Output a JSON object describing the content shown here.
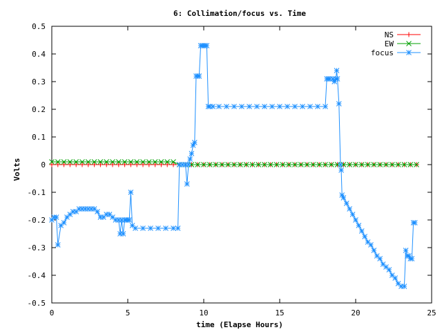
{
  "chart_data": {
    "type": "line",
    "title": "6: Collimation/focus vs. Time",
    "xlabel": "time (Elapse Hours)",
    "ylabel": "Volts",
    "xlim": [
      0,
      25
    ],
    "ylim": [
      -0.5,
      0.5
    ],
    "xticks": [
      0,
      5,
      10,
      15,
      20,
      25
    ],
    "xtick_labels": [
      "0",
      "5",
      "10",
      "15",
      "20",
      "25"
    ],
    "yticks": [
      -0.5,
      -0.4,
      -0.3,
      -0.2,
      -0.1,
      0,
      0.1,
      0.2,
      0.3,
      0.4,
      0.5
    ],
    "ytick_labels": [
      "-0.5",
      "-0.4",
      "-0.3",
      "-0.2",
      "-0.1",
      "0",
      "0.1",
      "0.2",
      "0.3",
      "0.4",
      "0.5"
    ],
    "grid": false,
    "legend_position": "top-right",
    "series": [
      {
        "name": "NS",
        "color": "#ff0000",
        "marker": "plus",
        "x": [
          0,
          0.4,
          0.8,
          1.2,
          1.6,
          2.0,
          2.4,
          2.8,
          3.2,
          3.6,
          4.0,
          4.4,
          4.8,
          5.2,
          5.6,
          6.0,
          6.4,
          6.8,
          7.2,
          7.6,
          8.0,
          8.4,
          8.8,
          9.2,
          9.6,
          10.0,
          10.4,
          10.8,
          11.2,
          11.6,
          12.0,
          12.4,
          12.8,
          13.2,
          13.6,
          14.0,
          14.4,
          14.8,
          15.2,
          15.6,
          16.0,
          16.4,
          16.8,
          17.2,
          17.6,
          18.0,
          18.4,
          18.8,
          19.2,
          19.6,
          20.0,
          20.4,
          20.8,
          21.2,
          21.6,
          22.0,
          22.4,
          22.8,
          23.2,
          23.6,
          24.0
        ],
        "y": [
          0,
          0,
          0,
          0,
          0,
          0,
          0,
          0,
          0,
          0,
          0,
          0,
          0,
          0,
          0,
          0,
          0,
          0,
          0,
          0,
          0,
          0,
          0,
          0,
          0,
          0,
          0,
          0,
          0,
          0,
          0,
          0,
          0,
          0,
          0,
          0,
          0,
          0,
          0,
          0,
          0,
          0,
          0,
          0,
          0,
          0,
          0,
          0,
          0,
          0,
          0,
          0,
          0,
          0,
          0,
          0,
          0,
          0,
          0,
          0,
          0
        ]
      },
      {
        "name": "EW",
        "color": "#00a000",
        "marker": "x",
        "x": [
          0,
          0.4,
          0.8,
          1.2,
          1.6,
          2.0,
          2.4,
          2.8,
          3.2,
          3.6,
          4.0,
          4.4,
          4.8,
          5.2,
          5.6,
          6.0,
          6.4,
          6.8,
          7.2,
          7.6,
          8.0,
          8.4,
          8.8,
          9.2,
          9.6,
          10.0,
          10.4,
          10.8,
          11.2,
          11.6,
          12.0,
          12.4,
          12.8,
          13.2,
          13.6,
          14.0,
          14.4,
          14.8,
          15.2,
          15.6,
          16.0,
          16.4,
          16.8,
          17.2,
          17.6,
          18.0,
          18.4,
          18.8,
          19.2,
          19.6,
          20.0,
          20.4,
          20.8,
          21.2,
          21.6,
          22.0,
          22.4,
          22.8,
          23.2,
          23.6,
          24.0
        ],
        "y": [
          0.01,
          0.01,
          0.01,
          0.01,
          0.01,
          0.01,
          0.01,
          0.01,
          0.01,
          0.01,
          0.01,
          0.01,
          0.01,
          0.01,
          0.01,
          0.01,
          0.01,
          0.01,
          0.01,
          0.01,
          0.01,
          0,
          0,
          0,
          0,
          0,
          0,
          0,
          0,
          0,
          0,
          0,
          0,
          0,
          0,
          0,
          0,
          0,
          0,
          0,
          0,
          0,
          0,
          0,
          0,
          0,
          0,
          0,
          0,
          0,
          0,
          0,
          0,
          0,
          0,
          0,
          0,
          0,
          0,
          0,
          0
        ]
      },
      {
        "name": "focus",
        "color": "#1e90ff",
        "marker": "star",
        "x": [
          0,
          0.15,
          0.3,
          0.4,
          0.6,
          0.8,
          1.0,
          1.2,
          1.4,
          1.6,
          1.8,
          2.0,
          2.2,
          2.4,
          2.6,
          2.8,
          3.0,
          3.2,
          3.4,
          3.6,
          3.8,
          4.0,
          4.2,
          4.4,
          4.5,
          4.6,
          4.7,
          4.8,
          4.9,
          5.0,
          5.1,
          5.2,
          5.3,
          5.5,
          6.0,
          6.5,
          7.0,
          7.5,
          8.0,
          8.3,
          8.4,
          8.6,
          8.8,
          8.9,
          9.0,
          9.1,
          9.2,
          9.3,
          9.4,
          9.5,
          9.6,
          9.7,
          9.8,
          9.9,
          10.0,
          10.1,
          10.2,
          10.3,
          10.4,
          10.6,
          11.0,
          11.5,
          12.0,
          12.5,
          13.0,
          13.5,
          14.0,
          14.5,
          15.0,
          15.5,
          16.0,
          16.5,
          17.0,
          17.5,
          18.0,
          18.1,
          18.2,
          18.3,
          18.5,
          18.6,
          18.7,
          18.75,
          18.8,
          18.9,
          19.0,
          19.05,
          19.1,
          19.2,
          19.4,
          19.6,
          19.8,
          20.0,
          20.2,
          20.4,
          20.6,
          20.8,
          21.0,
          21.2,
          21.4,
          21.6,
          21.8,
          22.0,
          22.2,
          22.4,
          22.6,
          22.8,
          23.0,
          23.2,
          23.3,
          23.4,
          23.5,
          23.6,
          23.7,
          23.8,
          23.9
        ],
        "y": [
          -0.2,
          -0.19,
          -0.19,
          -0.29,
          -0.22,
          -0.21,
          -0.19,
          -0.18,
          -0.17,
          -0.17,
          -0.16,
          -0.16,
          -0.16,
          -0.16,
          -0.16,
          -0.16,
          -0.17,
          -0.19,
          -0.19,
          -0.18,
          -0.18,
          -0.19,
          -0.2,
          -0.2,
          -0.25,
          -0.2,
          -0.25,
          -0.2,
          -0.2,
          -0.2,
          -0.2,
          -0.1,
          -0.22,
          -0.23,
          -0.23,
          -0.23,
          -0.23,
          -0.23,
          -0.23,
          -0.23,
          0,
          0,
          0,
          -0.07,
          0,
          0.02,
          0.04,
          0.07,
          0.08,
          0.32,
          0.32,
          0.32,
          0.43,
          0.43,
          0.43,
          0.43,
          0.43,
          0.21,
          0.21,
          0.21,
          0.21,
          0.21,
          0.21,
          0.21,
          0.21,
          0.21,
          0.21,
          0.21,
          0.21,
          0.21,
          0.21,
          0.21,
          0.21,
          0.21,
          0.21,
          0.31,
          0.31,
          0.31,
          0.31,
          0.3,
          0.31,
          0.34,
          0.31,
          0.22,
          0,
          -0.02,
          -0.11,
          -0.12,
          -0.14,
          -0.16,
          -0.18,
          -0.2,
          -0.22,
          -0.24,
          -0.26,
          -0.28,
          -0.29,
          -0.31,
          -0.33,
          -0.34,
          -0.36,
          -0.37,
          -0.38,
          -0.4,
          -0.41,
          -0.43,
          -0.44,
          -0.44,
          -0.31,
          -0.33,
          -0.33,
          -0.34,
          -0.34,
          -0.21,
          -0.21
        ]
      }
    ]
  }
}
